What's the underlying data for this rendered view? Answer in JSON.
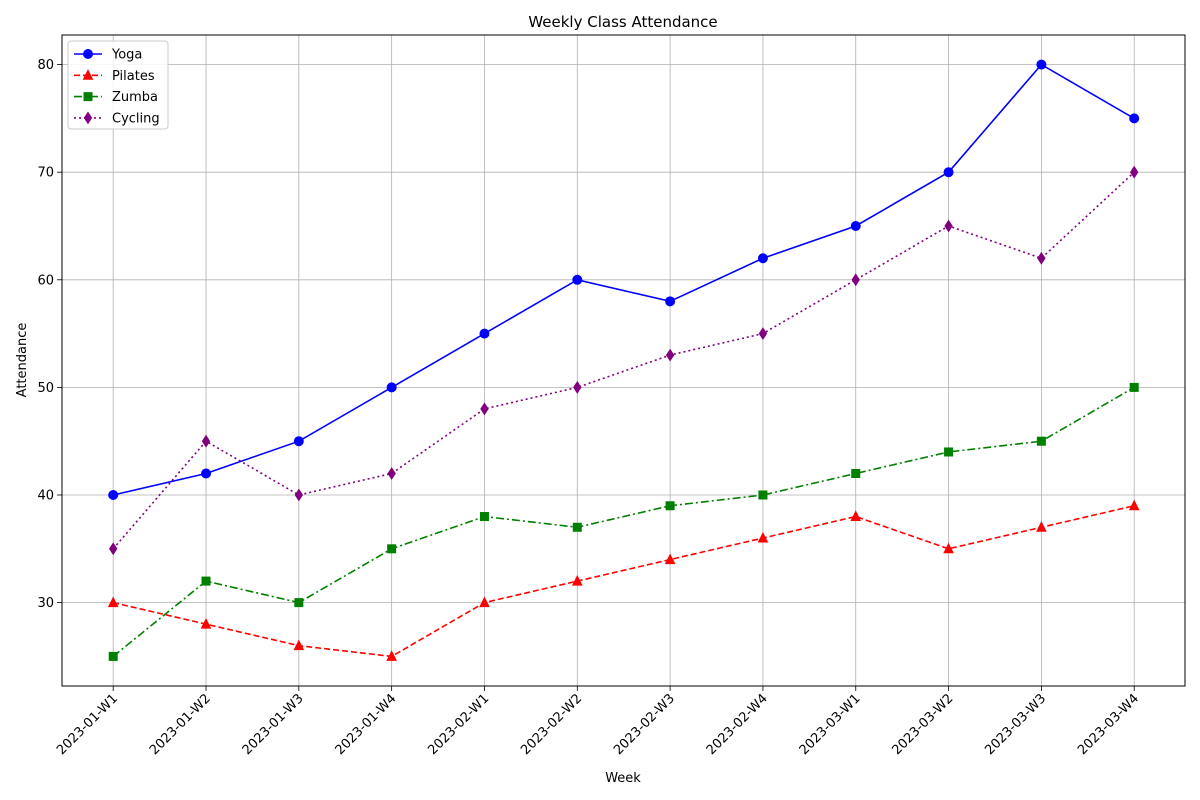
{
  "chart_data": {
    "type": "line",
    "title": "Weekly Class Attendance",
    "xlabel": "Week",
    "ylabel": "Attendance",
    "categories": [
      "2023-01-W1",
      "2023-01-W2",
      "2023-01-W3",
      "2023-01-W4",
      "2023-02-W1",
      "2023-02-W2",
      "2023-02-W3",
      "2023-02-W4",
      "2023-03-W1",
      "2023-03-W2",
      "2023-03-W3",
      "2023-03-W4"
    ],
    "ylim": [
      22.25,
      82.75
    ],
    "yticks": [
      30,
      40,
      50,
      60,
      70,
      80
    ],
    "grid": true,
    "legend_position": "top-left",
    "series": [
      {
        "name": "Yoga",
        "color": "#0000ff",
        "linestyle": "solid",
        "marker": "circle",
        "values": [
          40,
          42,
          45,
          50,
          55,
          60,
          58,
          62,
          65,
          70,
          80,
          75
        ]
      },
      {
        "name": "Pilates",
        "color": "#ff0000",
        "linestyle": "dashed",
        "marker": "triangle",
        "values": [
          30,
          28,
          26,
          25,
          30,
          32,
          34,
          36,
          38,
          35,
          37,
          39
        ]
      },
      {
        "name": "Zumba",
        "color": "#008000",
        "linestyle": "dashdot",
        "marker": "square",
        "values": [
          25,
          32,
          30,
          35,
          38,
          37,
          39,
          40,
          42,
          44,
          45,
          50
        ]
      },
      {
        "name": "Cycling",
        "color": "#800080",
        "linestyle": "dotted",
        "marker": "diamond",
        "values": [
          35,
          45,
          40,
          42,
          48,
          50,
          53,
          55,
          60,
          65,
          62,
          70
        ]
      }
    ]
  }
}
